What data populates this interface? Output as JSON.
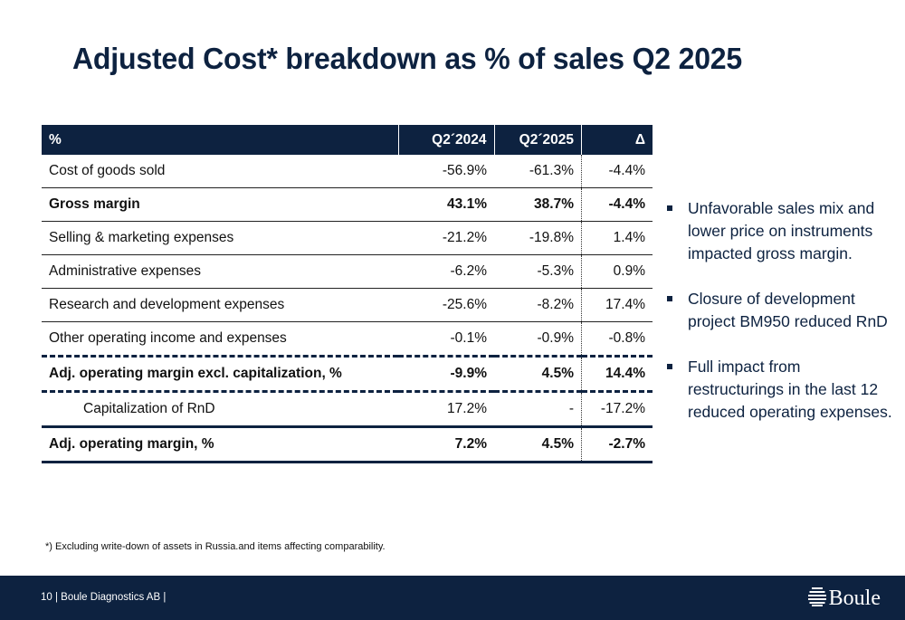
{
  "title": "Adjusted Cost* breakdown as % of sales Q2 2025",
  "table": {
    "headers": [
      "%",
      "Q2´2024",
      "Q2´2025",
      "Δ"
    ],
    "rows": [
      {
        "label": "Cost of goods sold",
        "q2_2024": "-56.9%",
        "q2_2025": "-61.3%",
        "delta": "-4.4%"
      },
      {
        "label": "Gross margin",
        "q2_2024": "43.1%",
        "q2_2025": "38.7%",
        "delta": "-4.4%"
      },
      {
        "label": "Selling & marketing expenses",
        "q2_2024": "-21.2%",
        "q2_2025": "-19.8%",
        "delta": "1.4%"
      },
      {
        "label": "Administrative expenses",
        "q2_2024": "-6.2%",
        "q2_2025": "-5.3%",
        "delta": "0.9%"
      },
      {
        "label": "Research and development expenses",
        "q2_2024": "-25.6%",
        "q2_2025": "-8.2%",
        "delta": "17.4%"
      },
      {
        "label": "Other operating income and expenses",
        "q2_2024": "-0.1%",
        "q2_2025": "-0.9%",
        "delta": "-0.8%"
      },
      {
        "label": "Adj. operating margin excl. capitalization, %",
        "q2_2024": "-9.9%",
        "q2_2025": "4.5%",
        "delta": "14.4%"
      },
      {
        "label": "Capitalization of RnD",
        "q2_2024": "17.2%",
        "q2_2025": "-",
        "delta": "-17.2%"
      },
      {
        "label": "Adj. operating margin, %",
        "q2_2024": "7.2%",
        "q2_2025": "4.5%",
        "delta": "-2.7%"
      }
    ]
  },
  "bullets": [
    "Unfavorable sales mix and lower price on instruments impacted gross margin.",
    "Closure of development project BM950 reduced RnD",
    "Full impact from restructurings in the last 12 reduced operating expenses."
  ],
  "footnote": "*) Excluding write-down of assets in Russia.and items affecting comparability.",
  "footer": {
    "text": "10 | Boule Diagnostics AB  |",
    "logo_text": "Boule",
    "logo_icon": "boule-logo-icon"
  },
  "colors": {
    "navy": "#0d2240",
    "white": "#ffffff"
  }
}
